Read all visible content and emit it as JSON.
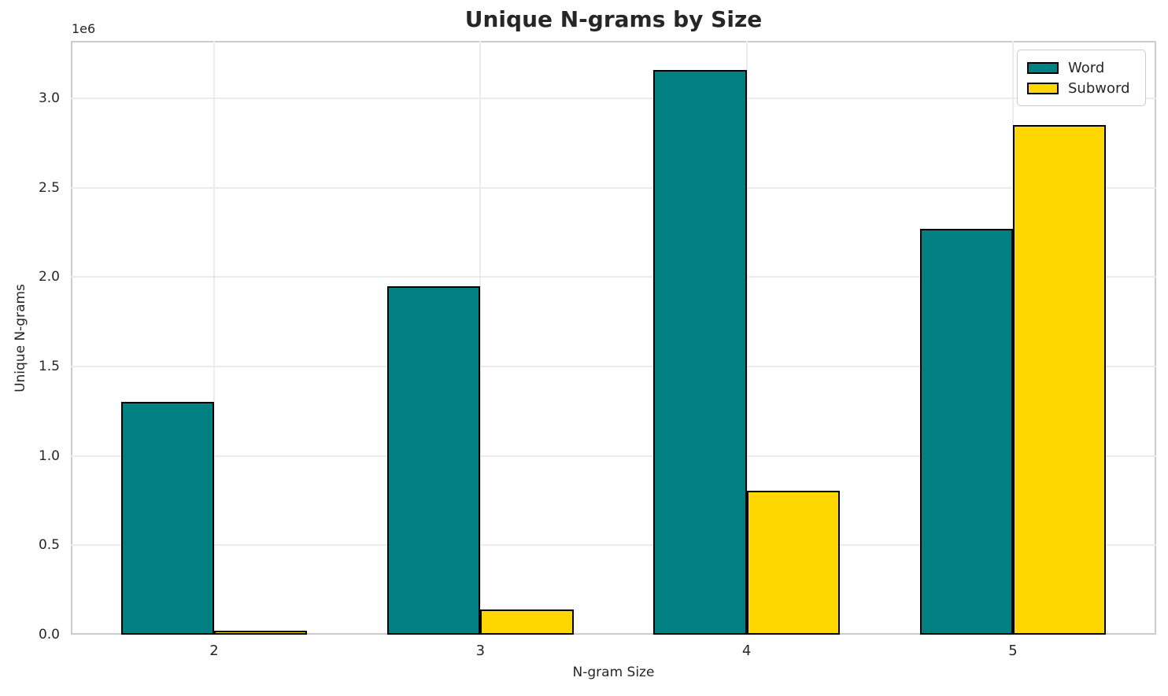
{
  "figure": {
    "title": "Unique N-grams by Size"
  },
  "chart_data": {
    "type": "bar",
    "title": "Unique N-grams by Size",
    "xlabel": "N-gram Size",
    "ylabel": "Unique N-grams",
    "y_offset_label": "1e6",
    "categories": [
      "2",
      "3",
      "4",
      "5"
    ],
    "series": [
      {
        "name": "Word",
        "color": "#008080",
        "values": [
          1300000,
          1950000,
          3160000,
          2270000
        ]
      },
      {
        "name": "Subword",
        "color": "#FFD700",
        "values": [
          20000,
          140000,
          805000,
          2850000
        ]
      }
    ],
    "bar_edge_color": "#000000",
    "ylim": [
      0,
      3321000
    ],
    "yticks": [
      {
        "value": 0,
        "label": "0.0"
      },
      {
        "value": 500000,
        "label": "0.5"
      },
      {
        "value": 1000000,
        "label": "1.0"
      },
      {
        "value": 1500000,
        "label": "1.5"
      },
      {
        "value": 2000000,
        "label": "2.0"
      },
      {
        "value": 2500000,
        "label": "2.5"
      },
      {
        "value": 3000000,
        "label": "3.0"
      }
    ],
    "grid": true,
    "legend": {
      "position": "upper right",
      "entries": [
        "Word",
        "Subword"
      ]
    }
  }
}
